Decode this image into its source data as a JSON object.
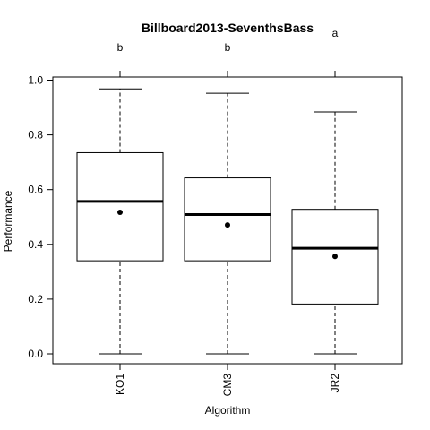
{
  "chart_data": {
    "type": "boxplot",
    "title": "Billboard2013-SeventhsBass",
    "xlabel": "Algorithm",
    "ylabel": "Performance",
    "ylim": [
      -0.04,
      1.02
    ],
    "y_ticks": [
      0.0,
      0.2,
      0.4,
      0.6,
      0.8,
      1.0
    ],
    "y_tick_labels": [
      "0.0",
      "0.2",
      "0.4",
      "0.6",
      "0.8",
      "1.0"
    ],
    "categories": [
      "KO1",
      "CM3",
      "JR2"
    ],
    "group_letters": [
      "b",
      "b",
      "a"
    ],
    "boxes": [
      {
        "name": "KO1",
        "whisker_low": 0.0,
        "q1": 0.34,
        "median": 0.557,
        "q3": 0.735,
        "whisker_high": 0.968,
        "mean": 0.517
      },
      {
        "name": "CM3",
        "whisker_low": 0.0,
        "q1": 0.34,
        "median": 0.509,
        "q3": 0.643,
        "whisker_high": 0.952,
        "mean": 0.471
      },
      {
        "name": "JR2",
        "whisker_low": 0.0,
        "q1": 0.182,
        "median": 0.386,
        "q3": 0.528,
        "whisker_high": 0.884,
        "mean": 0.356
      }
    ]
  }
}
